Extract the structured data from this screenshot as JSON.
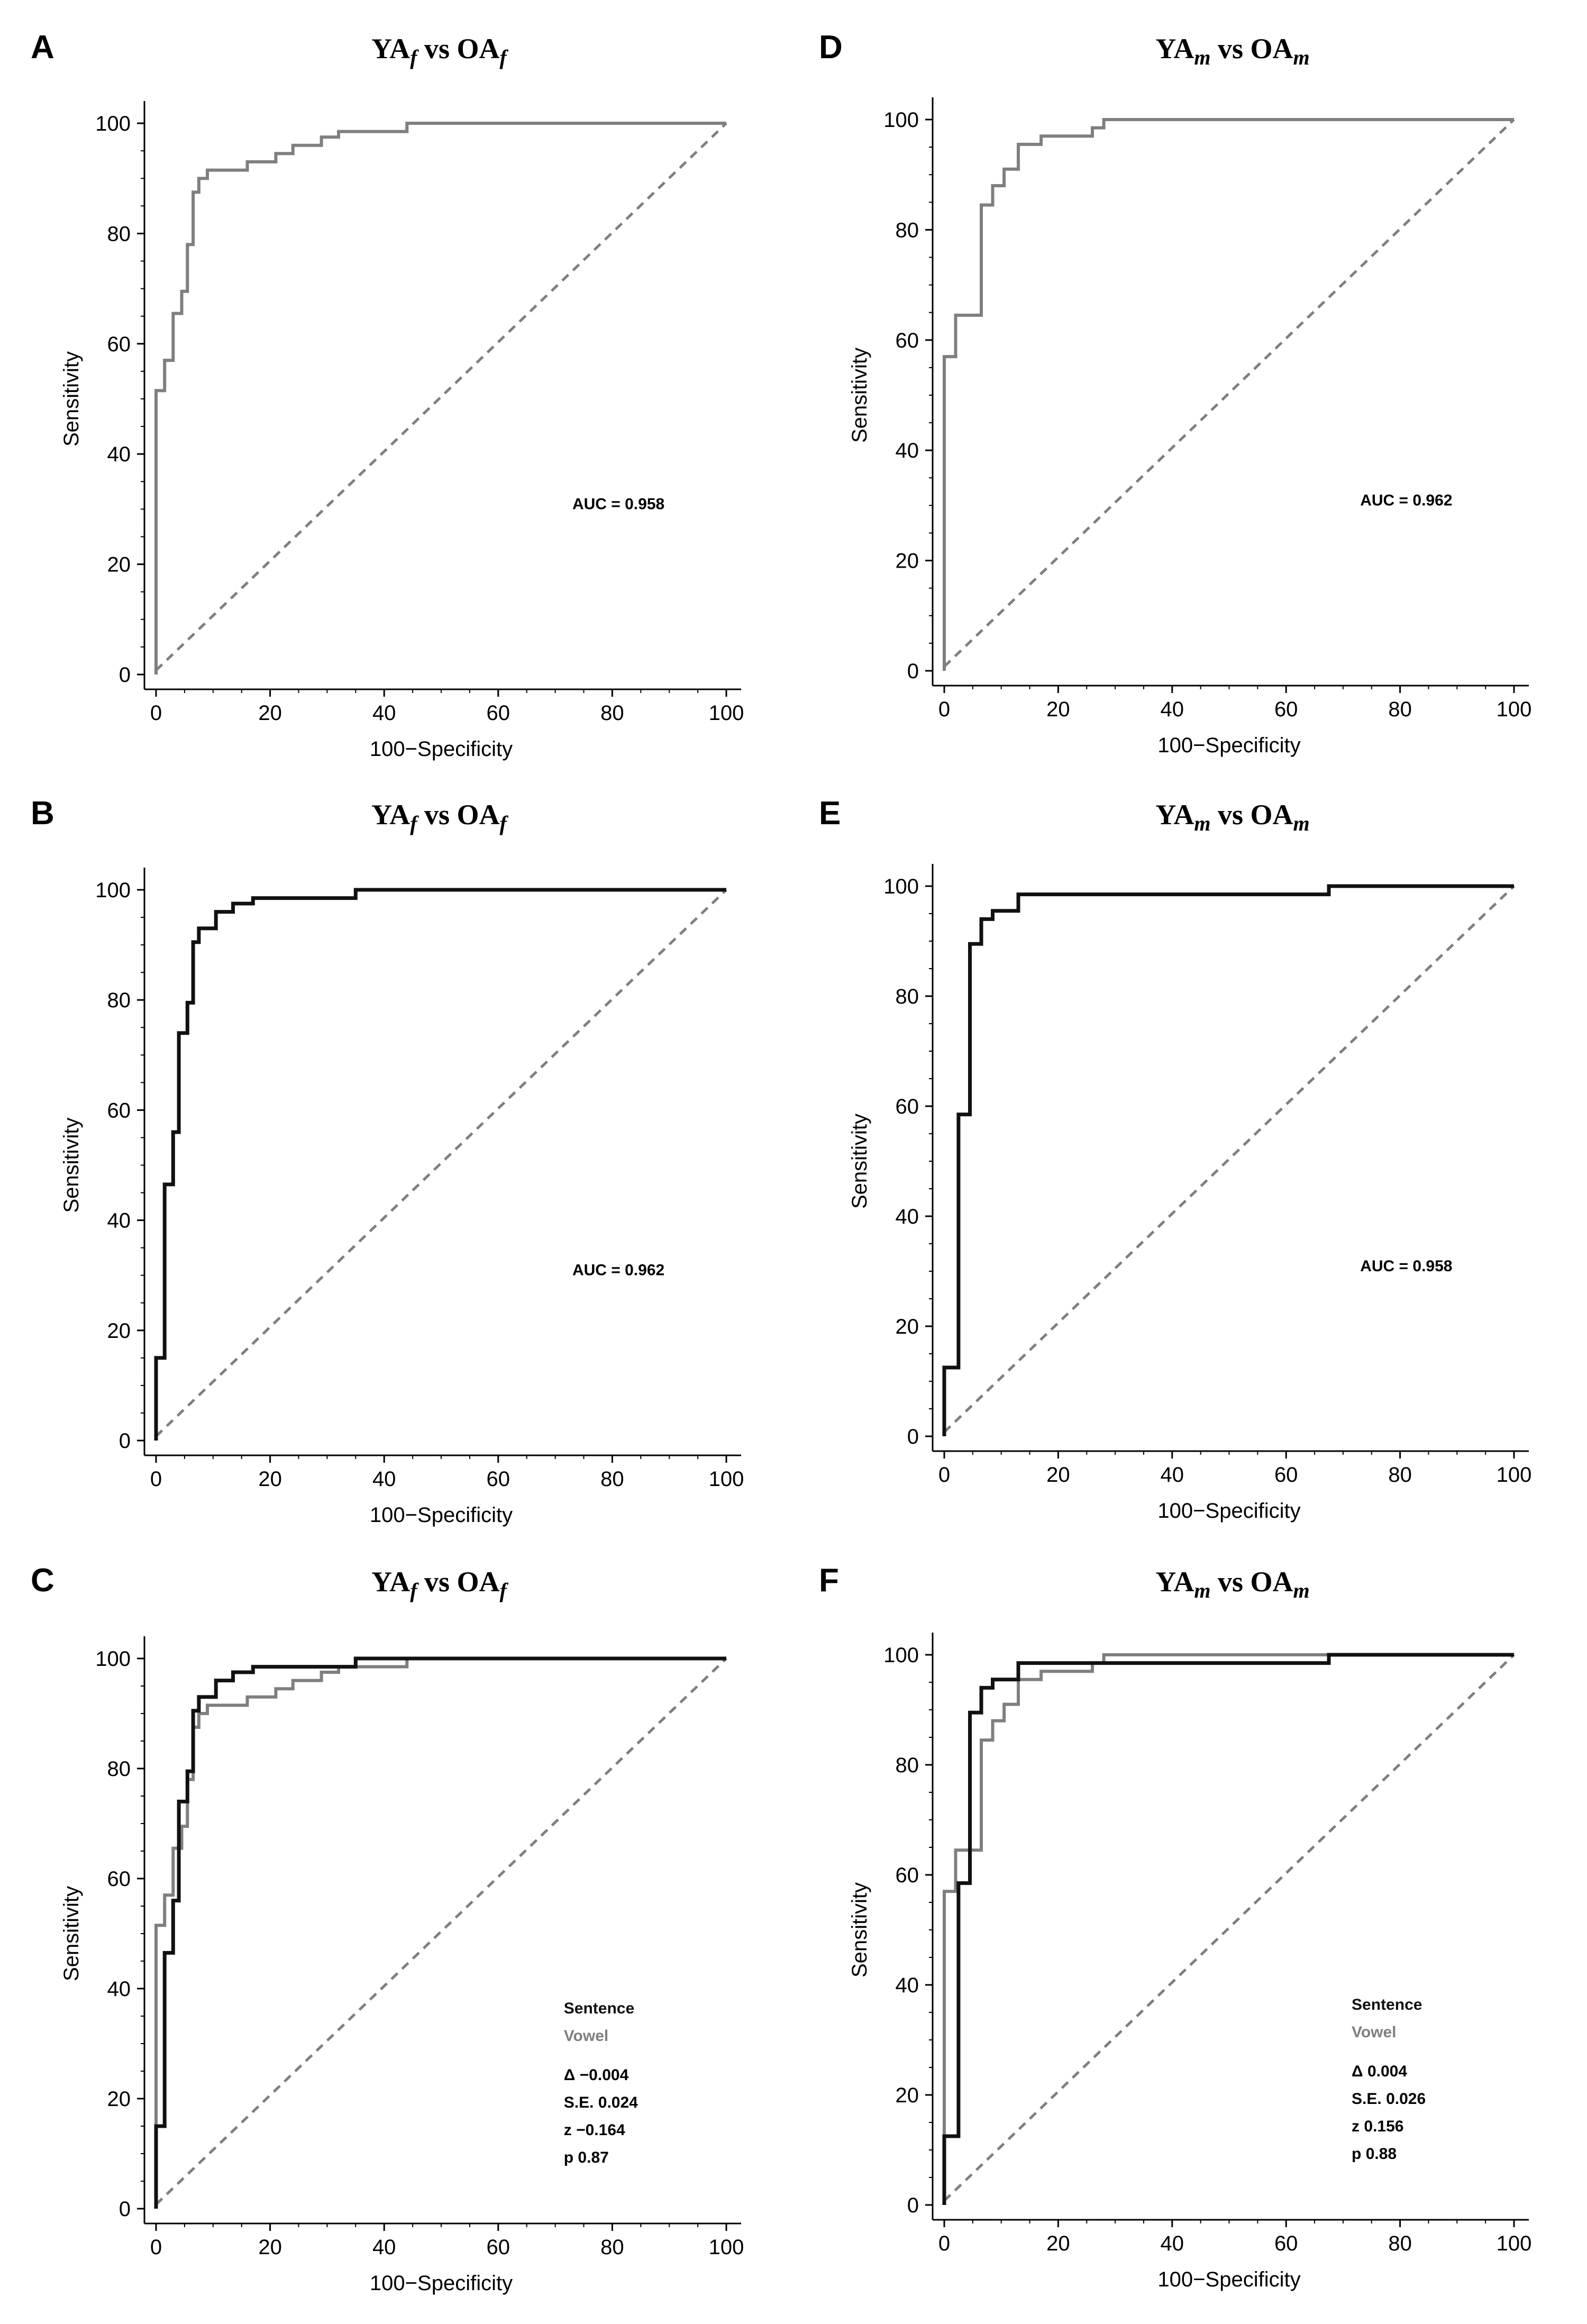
{
  "figure": {
    "colors": {
      "sentence": "#111111",
      "vowel": "#7f7f7f",
      "diagonal": "#7f7f7f",
      "axis": "#000000"
    }
  },
  "chart_data": [
    {
      "panel": "A",
      "type": "line",
      "title_main": [
        "YA",
        "vs OA"
      ],
      "title_sub": "f",
      "xlabel": "100−Specificity",
      "ylabel": "Sensitivity",
      "xlim": [
        0,
        100
      ],
      "ylim": [
        0,
        100
      ],
      "xticks": [
        0,
        20,
        40,
        60,
        80,
        100
      ],
      "yticks": [
        0,
        20,
        40,
        60,
        80,
        100
      ],
      "series": [
        {
          "name": "Vowel",
          "color": "#7f7f7f",
          "points": [
            [
              0,
              0
            ],
            [
              0,
              51.5
            ],
            [
              1.5,
              51.5
            ],
            [
              1.5,
              57
            ],
            [
              3,
              57
            ],
            [
              3,
              65.5
            ],
            [
              4.5,
              65.5
            ],
            [
              4.5,
              69.5
            ],
            [
              5.5,
              69.5
            ],
            [
              5.5,
              78
            ],
            [
              6.5,
              78
            ],
            [
              6.5,
              87.5
            ],
            [
              7.5,
              87.5
            ],
            [
              7.5,
              90
            ],
            [
              9,
              90
            ],
            [
              9,
              91.5
            ],
            [
              16,
              91.5
            ],
            [
              16,
              93
            ],
            [
              21,
              93
            ],
            [
              21,
              94.5
            ],
            [
              24,
              94.5
            ],
            [
              24,
              96
            ],
            [
              29,
              96
            ],
            [
              29,
              97.5
            ],
            [
              32,
              97.5
            ],
            [
              32,
              98.5
            ],
            [
              44,
              98.5
            ],
            [
              44,
              100
            ],
            [
              100,
              100
            ]
          ]
        }
      ],
      "annotations": [
        "AUC = 0.958"
      ]
    },
    {
      "panel": "D",
      "type": "line",
      "title_main": [
        "YA",
        "vs OA"
      ],
      "title_sub": "m",
      "xlabel": "100−Specificity",
      "ylabel": "Sensitivity",
      "xlim": [
        0,
        100
      ],
      "ylim": [
        0,
        100
      ],
      "xticks": [
        0,
        20,
        40,
        60,
        80,
        100
      ],
      "yticks": [
        0,
        20,
        40,
        60,
        80,
        100
      ],
      "series": [
        {
          "name": "Vowel",
          "color": "#7f7f7f",
          "points": [
            [
              0,
              0
            ],
            [
              0,
              57
            ],
            [
              2,
              57
            ],
            [
              2,
              64.5
            ],
            [
              6.5,
              64.5
            ],
            [
              6.5,
              84.5
            ],
            [
              8.5,
              84.5
            ],
            [
              8.5,
              88
            ],
            [
              10.5,
              88
            ],
            [
              10.5,
              91
            ],
            [
              13,
              91
            ],
            [
              13,
              95.5
            ],
            [
              17,
              95.5
            ],
            [
              17,
              97
            ],
            [
              26,
              97
            ],
            [
              26,
              98.5
            ],
            [
              28,
              98.5
            ],
            [
              28,
              100
            ],
            [
              100,
              100
            ]
          ]
        }
      ],
      "annotations": [
        "AUC = 0.962"
      ]
    },
    {
      "panel": "B",
      "type": "line",
      "title_main": [
        "YA",
        "vs OA"
      ],
      "title_sub": "f",
      "xlabel": "100−Specificity",
      "ylabel": "Sensitivity",
      "xlim": [
        0,
        100
      ],
      "ylim": [
        0,
        100
      ],
      "xticks": [
        0,
        20,
        40,
        60,
        80,
        100
      ],
      "yticks": [
        0,
        20,
        40,
        60,
        80,
        100
      ],
      "series": [
        {
          "name": "Sentence",
          "color": "#111111",
          "points": [
            [
              0,
              0
            ],
            [
              0,
              15
            ],
            [
              1.5,
              15
            ],
            [
              1.5,
              46.5
            ],
            [
              3,
              46.5
            ],
            [
              3,
              56
            ],
            [
              4,
              56
            ],
            [
              4,
              74
            ],
            [
              5.5,
              74
            ],
            [
              5.5,
              79.5
            ],
            [
              6.5,
              79.5
            ],
            [
              6.5,
              90.5
            ],
            [
              7.5,
              90.5
            ],
            [
              7.5,
              93
            ],
            [
              10.5,
              93
            ],
            [
              10.5,
              96
            ],
            [
              13.5,
              96
            ],
            [
              13.5,
              97.5
            ],
            [
              17,
              97.5
            ],
            [
              17,
              98.5
            ],
            [
              35,
              98.5
            ],
            [
              35,
              100
            ],
            [
              100,
              100
            ]
          ]
        }
      ],
      "annotations": [
        "AUC = 0.962"
      ]
    },
    {
      "panel": "E",
      "type": "line",
      "title_main": [
        "YA",
        "vs OA"
      ],
      "title_sub": "m",
      "xlabel": "100−Specificity",
      "ylabel": "Sensitivity",
      "xlim": [
        0,
        100
      ],
      "ylim": [
        0,
        100
      ],
      "xticks": [
        0,
        20,
        40,
        60,
        80,
        100
      ],
      "yticks": [
        0,
        20,
        40,
        60,
        80,
        100
      ],
      "series": [
        {
          "name": "Sentence",
          "color": "#111111",
          "points": [
            [
              0,
              0
            ],
            [
              0,
              12.5
            ],
            [
              2.5,
              12.5
            ],
            [
              2.5,
              58.5
            ],
            [
              4.5,
              58.5
            ],
            [
              4.5,
              89.5
            ],
            [
              6.5,
              89.5
            ],
            [
              6.5,
              94
            ],
            [
              8.5,
              94
            ],
            [
              8.5,
              95.5
            ],
            [
              13,
              95.5
            ],
            [
              13,
              98.5
            ],
            [
              67.5,
              98.5
            ],
            [
              67.5,
              100
            ],
            [
              100,
              100
            ]
          ]
        }
      ],
      "annotations": [
        "AUC = 0.958"
      ]
    },
    {
      "panel": "C",
      "type": "line",
      "title_main": [
        "YA",
        "vs OA"
      ],
      "title_sub": "f",
      "xlabel": "100−Specificity",
      "ylabel": "Sensitivity",
      "xlim": [
        0,
        100
      ],
      "ylim": [
        0,
        100
      ],
      "xticks": [
        0,
        20,
        40,
        60,
        80,
        100
      ],
      "yticks": [
        0,
        20,
        40,
        60,
        80,
        100
      ],
      "series": [
        {
          "name": "Vowel",
          "color": "#7f7f7f",
          "points": [
            [
              0,
              0
            ],
            [
              0,
              51.5
            ],
            [
              1.5,
              51.5
            ],
            [
              1.5,
              57
            ],
            [
              3,
              57
            ],
            [
              3,
              65.5
            ],
            [
              4.5,
              65.5
            ],
            [
              4.5,
              69.5
            ],
            [
              5.5,
              69.5
            ],
            [
              5.5,
              78
            ],
            [
              6.5,
              78
            ],
            [
              6.5,
              87.5
            ],
            [
              7.5,
              87.5
            ],
            [
              7.5,
              90
            ],
            [
              9,
              90
            ],
            [
              9,
              91.5
            ],
            [
              16,
              91.5
            ],
            [
              16,
              93
            ],
            [
              21,
              93
            ],
            [
              21,
              94.5
            ],
            [
              24,
              94.5
            ],
            [
              24,
              96
            ],
            [
              29,
              96
            ],
            [
              29,
              97.5
            ],
            [
              32,
              97.5
            ],
            [
              32,
              98.5
            ],
            [
              44,
              98.5
            ],
            [
              44,
              100
            ],
            [
              100,
              100
            ]
          ]
        },
        {
          "name": "Sentence",
          "color": "#111111",
          "points": [
            [
              0,
              0
            ],
            [
              0,
              15
            ],
            [
              1.5,
              15
            ],
            [
              1.5,
              46.5
            ],
            [
              3,
              46.5
            ],
            [
              3,
              56
            ],
            [
              4,
              56
            ],
            [
              4,
              74
            ],
            [
              5.5,
              74
            ],
            [
              5.5,
              79.5
            ],
            [
              6.5,
              79.5
            ],
            [
              6.5,
              90.5
            ],
            [
              7.5,
              90.5
            ],
            [
              7.5,
              93
            ],
            [
              10.5,
              93
            ],
            [
              10.5,
              96
            ],
            [
              13.5,
              96
            ],
            [
              13.5,
              97.5
            ],
            [
              17,
              97.5
            ],
            [
              17,
              98.5
            ],
            [
              35,
              98.5
            ],
            [
              35,
              100
            ],
            [
              100,
              100
            ]
          ]
        }
      ],
      "legend": [
        {
          "label": "Sentence",
          "color": "#111111"
        },
        {
          "label": "Vowel",
          "color": "#7f7f7f"
        }
      ],
      "stats": [
        "Δ −0.004",
        "S.E. 0.024",
        "z −0.164",
        "p 0.87"
      ]
    },
    {
      "panel": "F",
      "type": "line",
      "title_main": [
        "YA",
        "vs OA"
      ],
      "title_sub": "m",
      "xlabel": "100−Specificity",
      "ylabel": "Sensitivity",
      "xlim": [
        0,
        100
      ],
      "ylim": [
        0,
        100
      ],
      "xticks": [
        0,
        20,
        40,
        60,
        80,
        100
      ],
      "yticks": [
        0,
        20,
        40,
        60,
        80,
        100
      ],
      "series": [
        {
          "name": "Vowel",
          "color": "#7f7f7f",
          "points": [
            [
              0,
              0
            ],
            [
              0,
              57
            ],
            [
              2,
              57
            ],
            [
              2,
              64.5
            ],
            [
              6.5,
              64.5
            ],
            [
              6.5,
              84.5
            ],
            [
              8.5,
              84.5
            ],
            [
              8.5,
              88
            ],
            [
              10.5,
              88
            ],
            [
              10.5,
              91
            ],
            [
              13,
              91
            ],
            [
              13,
              95.5
            ],
            [
              17,
              95.5
            ],
            [
              17,
              97
            ],
            [
              26,
              97
            ],
            [
              26,
              98.5
            ],
            [
              28,
              98.5
            ],
            [
              28,
              100
            ],
            [
              100,
              100
            ]
          ]
        },
        {
          "name": "Sentence",
          "color": "#111111",
          "points": [
            [
              0,
              0
            ],
            [
              0,
              12.5
            ],
            [
              2.5,
              12.5
            ],
            [
              2.5,
              58.5
            ],
            [
              4.5,
              58.5
            ],
            [
              4.5,
              89.5
            ],
            [
              6.5,
              89.5
            ],
            [
              6.5,
              94
            ],
            [
              8.5,
              94
            ],
            [
              8.5,
              95.5
            ],
            [
              13,
              95.5
            ],
            [
              13,
              98.5
            ],
            [
              67.5,
              98.5
            ],
            [
              67.5,
              100
            ],
            [
              100,
              100
            ]
          ]
        }
      ],
      "legend": [
        {
          "label": "Sentence",
          "color": "#111111"
        },
        {
          "label": "Vowel",
          "color": "#7f7f7f"
        }
      ],
      "stats": [
        "Δ 0.004",
        "S.E. 0.026",
        "z 0.156",
        "p 0.88"
      ]
    }
  ]
}
